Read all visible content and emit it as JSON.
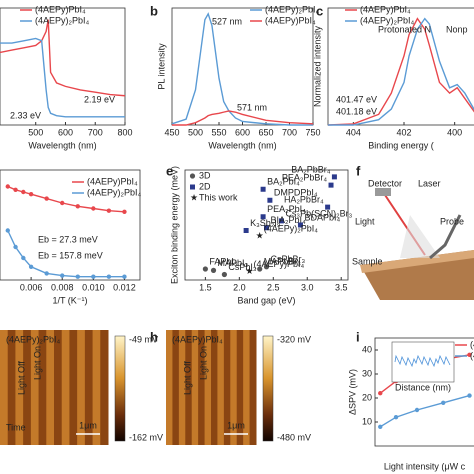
{
  "chart_data": [
    {
      "type": "line",
      "xlabel": "Wavelength (nm)",
      "xlim": [
        380,
        800
      ],
      "xticks": [
        500,
        600,
        700,
        800
      ],
      "ylim": [
        0,
        1
      ],
      "x": [
        380,
        420,
        460,
        500,
        520,
        535,
        542,
        550,
        570,
        600,
        650,
        700,
        750,
        800
      ],
      "series": [
        {
          "name": "(4AEPy)PbI₄",
          "color": "#e8474c",
          "values": [
            0.62,
            0.64,
            0.66,
            0.68,
            0.72,
            0.8,
            0.9,
            0.45,
            0.36,
            0.33,
            0.3,
            0.28,
            0.26,
            0.25
          ]
        },
        {
          "name": "(4AEPy)₂PbI₄",
          "color": "#5b9bd5",
          "values": [
            0.7,
            0.7,
            0.72,
            0.74,
            0.72,
            0.3,
            0.15,
            0.1,
            0.08,
            0.07,
            0.07,
            0.07,
            0.07,
            0.07
          ]
        }
      ],
      "annotations": [
        {
          "text": "2.19 eV",
          "color": "#e8474c"
        },
        {
          "text": "2.33 eV",
          "color": "#3a78b5"
        }
      ]
    },
    {
      "type": "line",
      "xlabel": "Wavelength (nm)",
      "ylabel": "PL intensity",
      "xlim": [
        450,
        750
      ],
      "xticks": [
        450,
        500,
        550,
        600,
        650,
        700,
        750
      ],
      "ylim": [
        0,
        1
      ],
      "x": [
        450,
        480,
        500,
        510,
        520,
        527,
        535,
        550,
        560,
        571,
        585,
        600,
        650,
        700,
        750
      ],
      "series": [
        {
          "name": "(4AEPy)₂PbI₄",
          "color": "#5b9bd5",
          "values": [
            0.01,
            0.05,
            0.3,
            0.6,
            0.9,
            0.95,
            0.85,
            0.4,
            0.2,
            0.12,
            0.06,
            0.03,
            0.01,
            0,
            0
          ]
        },
        {
          "name": "(4AEPy)PbI₄",
          "color": "#e8474c",
          "values": [
            0,
            0,
            0.02,
            0.04,
            0.06,
            0.08,
            0.09,
            0.1,
            0.11,
            0.12,
            0.11,
            0.09,
            0.04,
            0.02,
            0.01
          ]
        }
      ],
      "annotations": [
        {
          "text": "527 nm",
          "color": "#3a78b5"
        },
        {
          "text": "571 nm",
          "color": "#e8474c"
        }
      ]
    },
    {
      "type": "line",
      "xlabel": "Binding energy (",
      "ylabel": "Normalized intensity",
      "xlim": [
        405,
        399
      ],
      "xticks": [
        404,
        402,
        400
      ],
      "ylim": [
        0,
        1.1
      ],
      "x": [
        405,
        404,
        403,
        402.5,
        402,
        401.8,
        401.47,
        401.18,
        401,
        400.6,
        400.2,
        399.9,
        399.6,
        399
      ],
      "series": [
        {
          "name": "(4AEPy)PbI₄",
          "color": "#e8474c",
          "values": [
            0,
            0.01,
            0.1,
            0.3,
            0.65,
            0.85,
            1,
            0.9,
            0.75,
            0.4,
            0.3,
            0.35,
            0.25,
            0.05
          ]
        },
        {
          "name": "(4AEPy)₂PbI₄",
          "color": "#5b9bd5",
          "values": [
            0,
            0,
            0.05,
            0.15,
            0.4,
            0.65,
            0.9,
            1,
            0.95,
            0.6,
            0.35,
            0.38,
            0.3,
            0.05
          ]
        }
      ],
      "annotations": [
        {
          "text": "Protonated N",
          "color": "#222"
        },
        {
          "text": "Nonp",
          "color": "#222"
        },
        {
          "text": "401.47 eV",
          "color": "#e8474c"
        },
        {
          "text": "401.18 eV",
          "color": "#3a78b5"
        }
      ]
    },
    {
      "type": "line",
      "markers": true,
      "xlabel": "1/T (K⁻¹)",
      "xlim": [
        0.004,
        0.013
      ],
      "xticks": [
        0.006,
        0.008,
        {
          "value": 0.01,
          "label": "0.010"
        },
        0.012
      ],
      "ylim": [
        0,
        1
      ],
      "x": [
        0.0045,
        0.005,
        0.0055,
        0.006,
        0.007,
        0.008,
        0.009,
        0.01,
        0.011,
        0.012
      ],
      "series": [
        {
          "name": "(4AEPy)PbI₄",
          "color": "#e8474c",
          "values": [
            0.85,
            0.82,
            0.8,
            0.78,
            0.74,
            0.7,
            0.67,
            0.65,
            0.63,
            0.62
          ]
        },
        {
          "name": "(4AEPy)₂PbI₄",
          "color": "#5b9bd5",
          "values": [
            0.45,
            0.3,
            0.2,
            0.12,
            0.06,
            0.04,
            0.03,
            0.03,
            0.03,
            0.03
          ]
        }
      ],
      "annotations": [
        {
          "text": "Eb = 27.3 meV",
          "color": "#e8474c"
        },
        {
          "text": "Eb = 157.8 meV",
          "color": "#3a78b5"
        }
      ]
    },
    {
      "type": "scatter",
      "xlabel": "Band gap (eV)",
      "ylabel": "Exciton binding energy (meV)",
      "xlim": [
        1.2,
        3.6
      ],
      "xticks": [
        1.5,
        {
          "value": 2,
          "label": "2.0"
        },
        2.5,
        {
          "value": 3,
          "label": "3.0"
        },
        3.5
      ],
      "ylim": [
        0,
        400
      ],
      "series": [
        {
          "name": "3D",
          "color": "#555555",
          "marker": "circle",
          "x": [
            1.5,
            1.62,
            1.78,
            2.3,
            2.4
          ],
          "values": [
            40,
            35,
            20,
            40,
            48
          ],
          "labels": [
            "FAPbI₃",
            "MAPbI₃",
            "CsPbI₃",
            "MAPbBr₃",
            "CsPbBr₃"
          ]
        },
        {
          "name": "2D",
          "color": "#2b3a8c",
          "marker": "square",
          "x": [
            2.35,
            2.45,
            2.35,
            2.62,
            2.4,
            2.1,
            2.9,
            3.4,
            3.35,
            3.3
          ],
          "values": [
            330,
            290,
            230,
            215,
            190,
            180,
            200,
            375,
            345,
            265
          ],
          "labels": [
            "BA₂PbI₄",
            "DMPDPbI₄",
            "PEA₂PbI₄",
            "Cs₃Pb(SCN)₂Br₃",
            "BIA₂PbI₄",
            "K₃Sb₂I₉",
            "BDAPbI₄",
            "BA₂PbBr₄",
            "PEA₂PbBr₄",
            "HA₂PbBr₄"
          ]
        },
        {
          "name": "This work",
          "color": "#e8474c",
          "marker": "star",
          "x": [
            2.3,
            2.15
          ],
          "values": [
            160,
            30
          ],
          "labels": [
            "(4AEPy)₂PbI₄",
            "(4AEPy)PbI₄"
          ]
        }
      ]
    },
    {
      "type": "line",
      "markers": true,
      "ylabel": "ΔSPV (mV)",
      "xlabel": "Light intensity (μW c",
      "xlim": [
        0,
        1000
      ],
      "ylim": [
        0,
        45
      ],
      "yticks": [
        10,
        20,
        30,
        40
      ],
      "x": [
        50,
        200,
        400,
        650,
        900
      ],
      "series": [
        {
          "name": "(4AEPy)PbI₄",
          "color": "#e8474c",
          "values": [
            22,
            27,
            33,
            36,
            38
          ]
        },
        {
          "name": "(4AEPy)₂PbI₄",
          "color": "#5b9bd5",
          "values": [
            8,
            12,
            15,
            18,
            21
          ]
        }
      ],
      "inset_label": "Distance (nm)"
    }
  ],
  "figure": {
    "panel_labels": [
      "b",
      "c",
      "e",
      "f",
      "h",
      "i"
    ],
    "f": [
      "Detector",
      "Laser",
      "Light",
      "Probe",
      "Sample"
    ],
    "g": {
      "title": "(4AEPy)₂PbI₄",
      "max": "-49 mV",
      "min": "-162 mV",
      "off": "Light Off",
      "on": "Light On",
      "time": "Time",
      "scale": "1μm"
    },
    "h": {
      "title": "(4AEPy)PbI₄",
      "max": "-320 mV",
      "min": "-480 mV",
      "off": "Light Off",
      "on": "Light On",
      "scale": "1μm"
    }
  }
}
